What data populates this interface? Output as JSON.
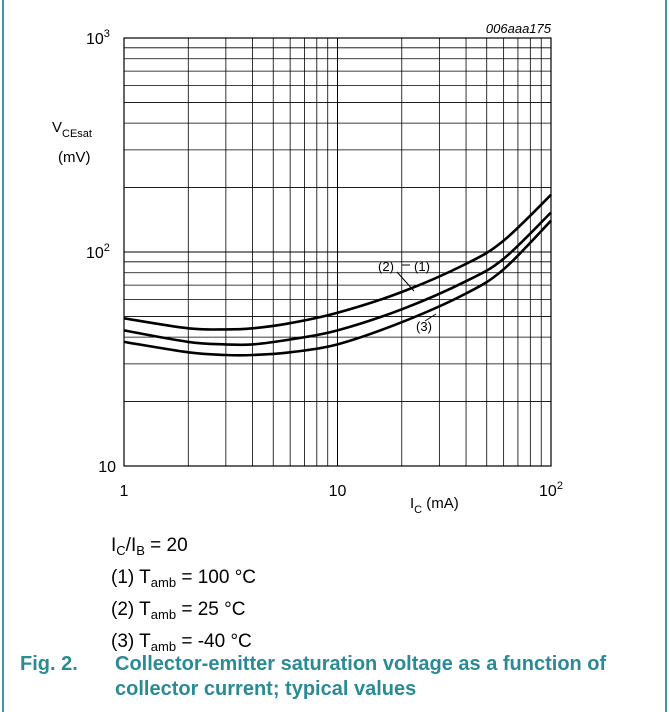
{
  "figure_id": "006aaa175",
  "chart_data": {
    "type": "line",
    "title": "",
    "xlabel_main": "I",
    "xlabel_sub": "C",
    "xlabel_unit": "(mA)",
    "ylabel_main": "V",
    "ylabel_sub": "CEsat",
    "ylabel_unit": "(mV)",
    "xscale": "log",
    "yscale": "log",
    "xlim": [
      1,
      100
    ],
    "ylim": [
      10,
      1000
    ],
    "grid": true,
    "x_ticks": [
      {
        "value": 1,
        "base": "1",
        "exp": ""
      },
      {
        "value": 10,
        "base": "10",
        "exp": ""
      },
      {
        "value": 100,
        "base": "10",
        "exp": "2"
      }
    ],
    "y_ticks": [
      {
        "value": 10,
        "base": "10",
        "exp": ""
      },
      {
        "value": 100,
        "base": "10",
        "exp": "2"
      },
      {
        "value": 1000,
        "base": "10",
        "exp": "3"
      }
    ],
    "series": [
      {
        "name": "(1)",
        "x": [
          1,
          2,
          3,
          4,
          6,
          10,
          20,
          40,
          60,
          100
        ],
        "y": [
          49,
          44,
          43.5,
          44,
          46.5,
          52,
          65,
          88,
          113,
          185
        ]
      },
      {
        "name": "(2)",
        "x": [
          1,
          2,
          3,
          4,
          6,
          10,
          20,
          40,
          60,
          100
        ],
        "y": [
          43,
          38,
          37,
          37,
          39,
          43,
          54,
          73,
          93,
          153
        ]
      },
      {
        "name": "(3)",
        "x": [
          1,
          2,
          3,
          4,
          6,
          10,
          20,
          40,
          60,
          100
        ],
        "y": [
          38,
          34,
          33,
          33,
          34,
          37,
          47,
          64,
          83,
          140
        ]
      }
    ]
  },
  "conditions": {
    "ratio": {
      "a": "I",
      "a_sub": "C",
      "sep": "/I",
      "b_sub": "B",
      "rest": " = 20"
    },
    "items": [
      {
        "num": "(1) T",
        "sub": "amb",
        "rest": " = 100 °C"
      },
      {
        "num": "(2) T",
        "sub": "amb",
        "rest": " = 25 °C"
      },
      {
        "num": "(3) T",
        "sub": "amb",
        "rest": " = -40 °C"
      }
    ]
  },
  "caption": {
    "number": "Fig. 2.",
    "text": "Collector-emitter saturation voltage as a function of collector current; typical values"
  }
}
